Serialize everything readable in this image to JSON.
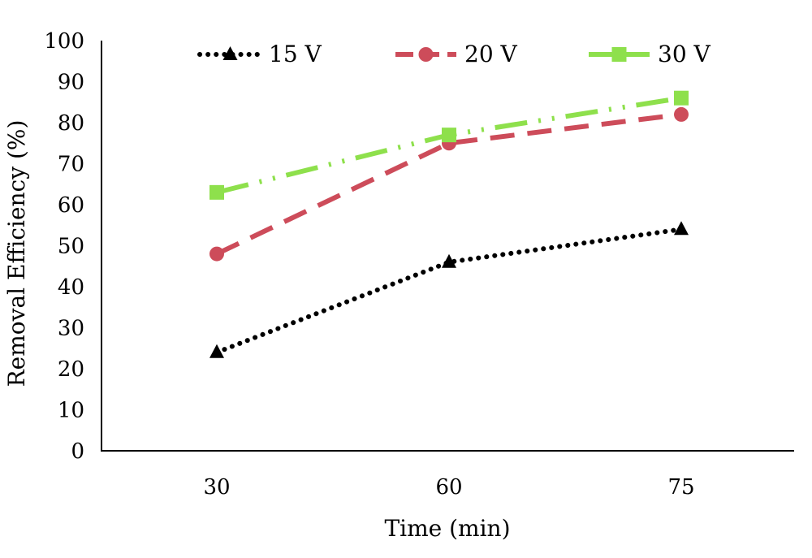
{
  "chart_data": {
    "type": "line",
    "title": "",
    "xlabel": "Time (min)",
    "ylabel": "Removal Efficiency  (%)",
    "categories": [
      "30",
      "60",
      "75"
    ],
    "ylim": [
      0,
      100
    ],
    "yticks": [
      "0",
      "10",
      "20",
      "30",
      "40",
      "50",
      "60",
      "70",
      "80",
      "90",
      "100"
    ],
    "grid": false,
    "legend_position": "top",
    "series": [
      {
        "name": "15 V",
        "values": [
          24,
          46,
          54
        ],
        "color": "#000000",
        "marker": "triangle",
        "line_style": "dotted"
      },
      {
        "name": "20 V",
        "values": [
          48,
          75,
          82
        ],
        "color": "#cd4c5a",
        "marker": "circle",
        "line_style": "dashed"
      },
      {
        "name": "30 V",
        "values": [
          63,
          77,
          86
        ],
        "color": "#8ee04c",
        "marker": "square",
        "line_style": "dash-dot-dot"
      }
    ]
  }
}
